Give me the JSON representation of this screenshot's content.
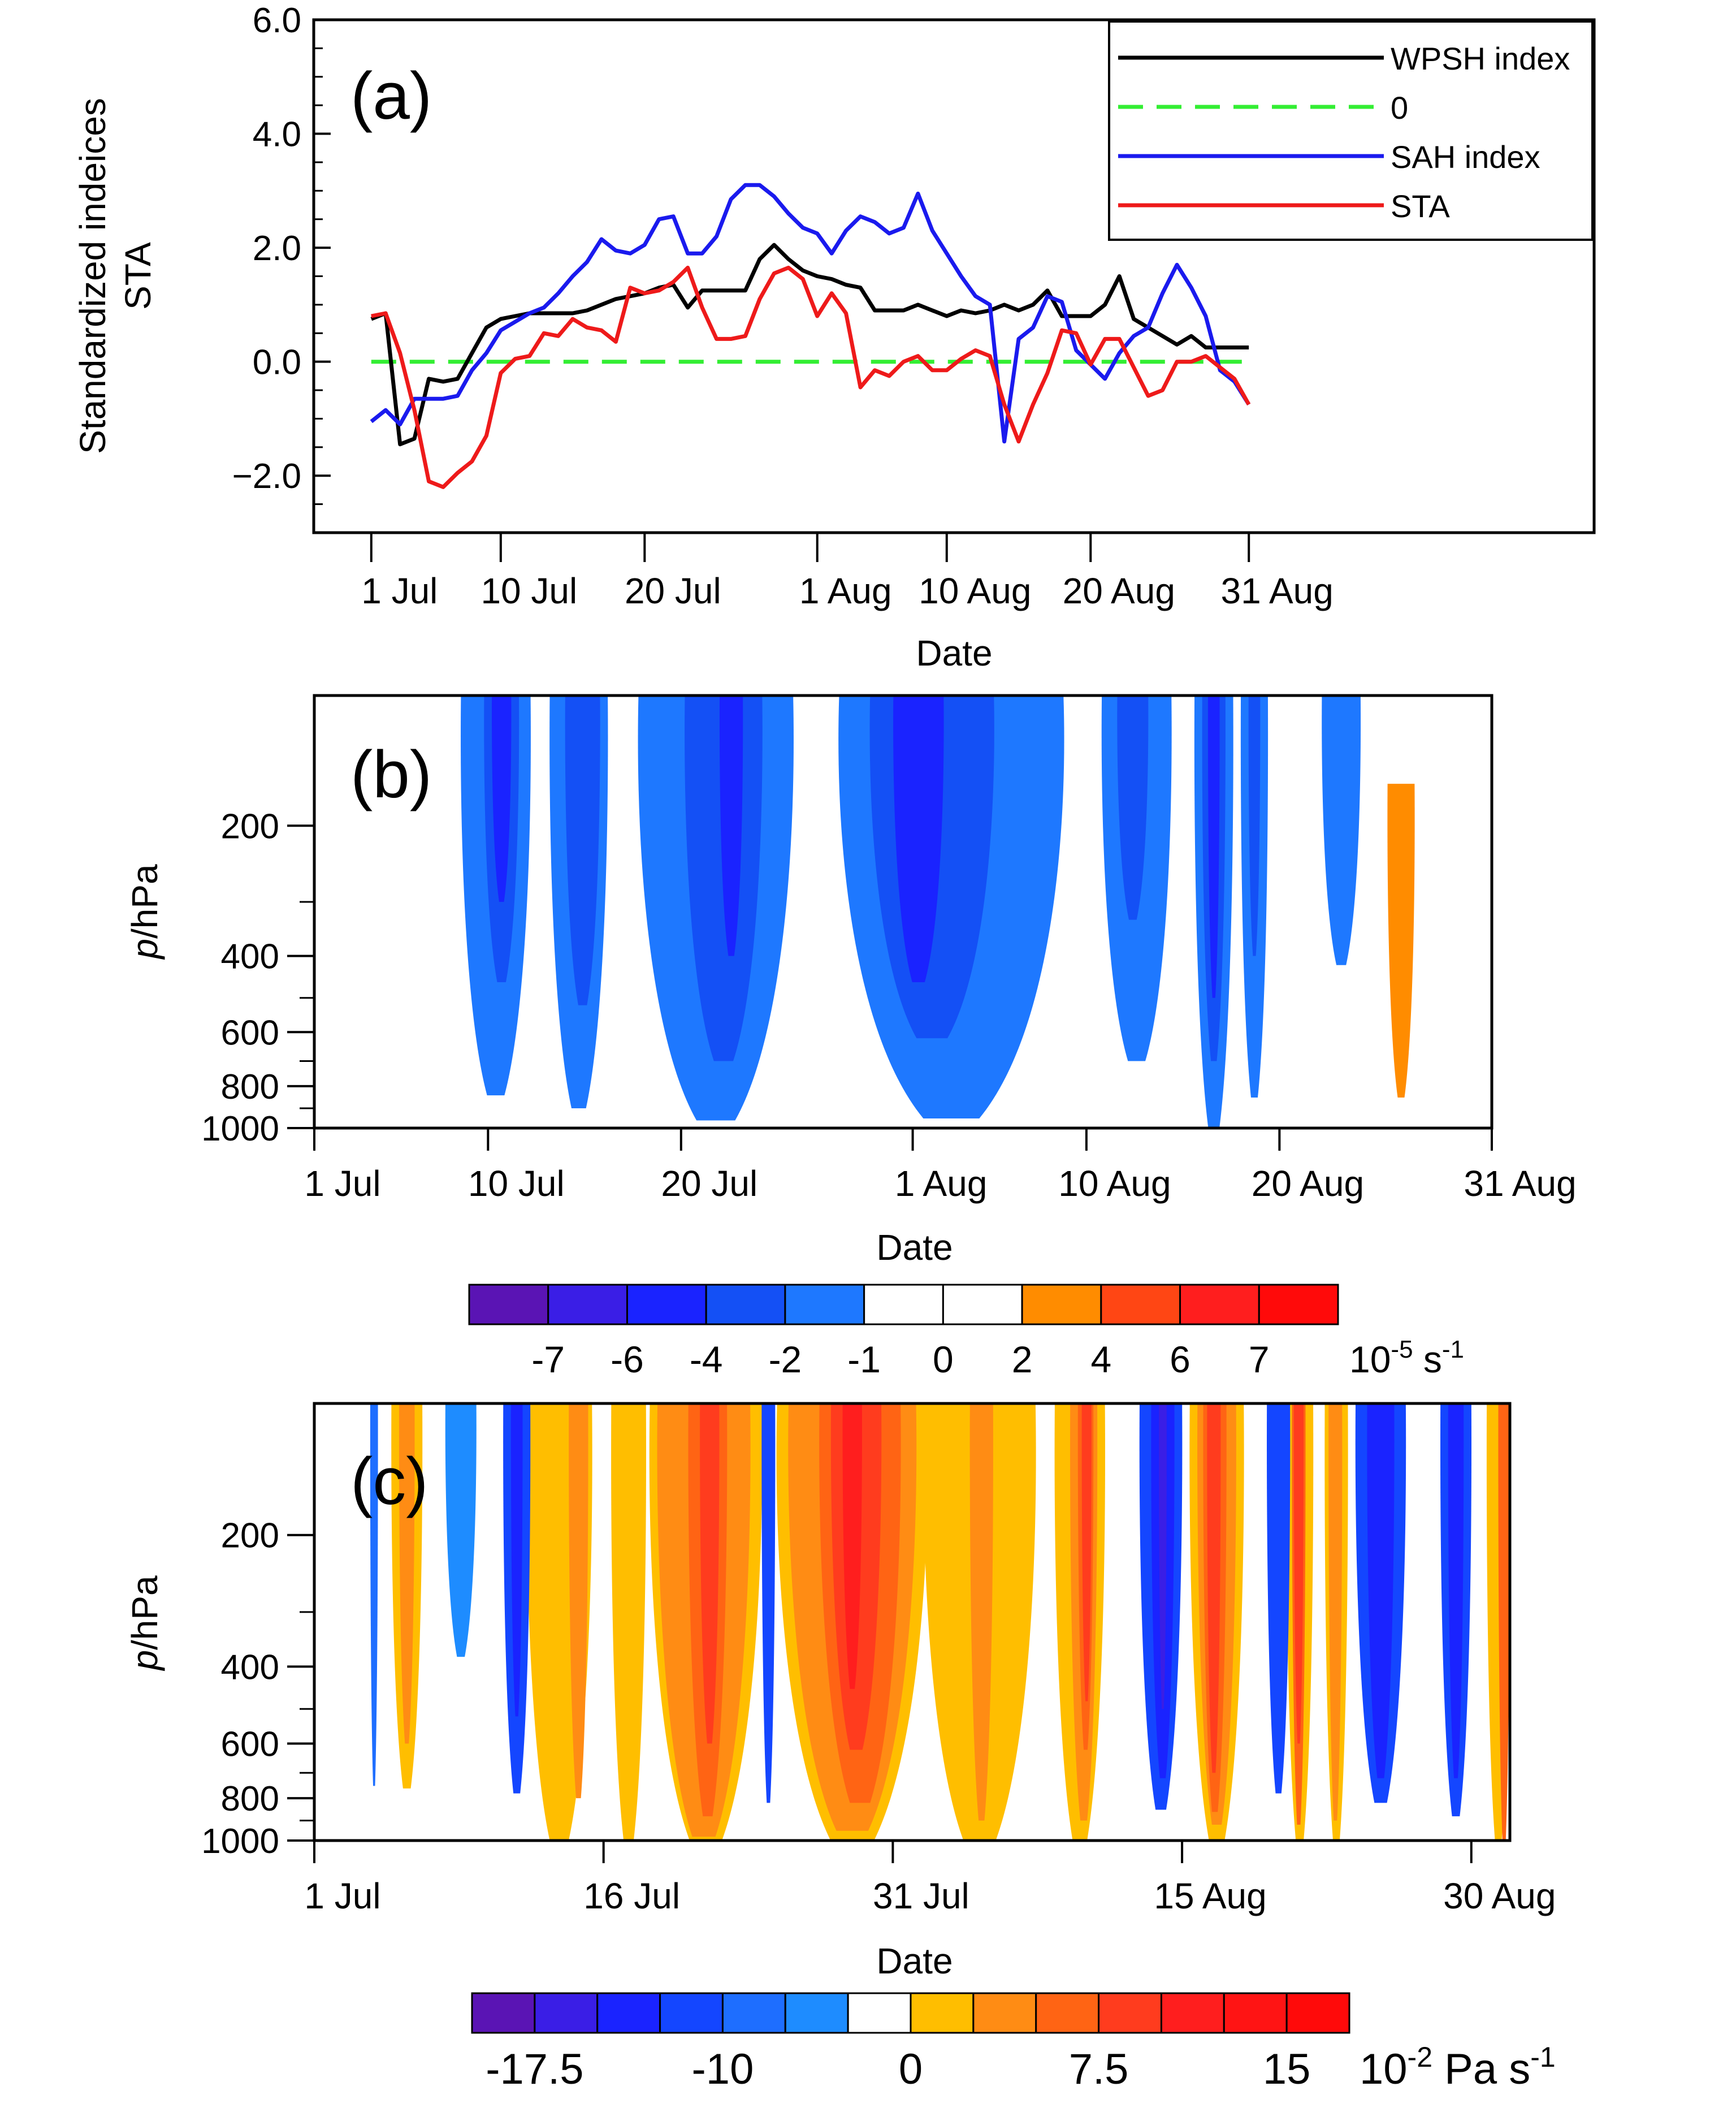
{
  "chart_data": [
    {
      "panel": "(a)",
      "type": "line",
      "ylabel_lines": [
        "Standardized indeices",
        "STA"
      ],
      "xlabel": "Date",
      "ylim": [
        -3.0,
        6.0
      ],
      "yticks": [
        6.0,
        4.0,
        2.0,
        0.0,
        -2.0
      ],
      "ytick_labels": [
        "6.0",
        "4.0",
        "2.0",
        "0.0",
        "−2.0"
      ],
      "xlim": [
        -4,
        85
      ],
      "xticks": [
        0,
        9,
        19,
        31,
        40,
        50,
        61
      ],
      "xtick_labels": [
        "1 Jul",
        "10 Jul",
        "20 Jul",
        "1 Aug",
        "10 Aug",
        "20 Aug",
        "31 Aug"
      ],
      "x_unit": "days since 1 Jul",
      "legend_position": "top-right",
      "series": [
        {
          "name": "WPSH index",
          "color": "#000000",
          "dash": "none",
          "x": [
            0,
            1,
            2,
            3,
            4,
            5,
            6,
            7,
            8,
            9,
            10,
            11,
            12,
            13,
            14,
            15,
            16,
            17,
            18,
            19,
            20,
            21,
            22,
            23,
            24,
            25,
            26,
            27,
            28,
            29,
            30,
            31,
            32,
            33,
            34,
            35,
            36,
            37,
            38,
            39,
            40,
            41,
            42,
            43,
            44,
            45,
            46,
            47,
            48,
            49,
            50,
            51,
            52,
            53,
            54,
            55,
            56,
            57,
            58,
            59,
            60,
            61
          ],
          "values": [
            0.75,
            0.85,
            -1.45,
            -1.35,
            -0.3,
            -0.35,
            -0.3,
            0.15,
            0.6,
            0.75,
            0.8,
            0.85,
            0.85,
            0.85,
            0.85,
            0.9,
            1.0,
            1.1,
            1.15,
            1.2,
            1.3,
            1.35,
            0.95,
            1.25,
            1.25,
            1.25,
            1.25,
            1.8,
            2.05,
            1.8,
            1.6,
            1.5,
            1.45,
            1.35,
            1.3,
            0.9,
            0.9,
            0.9,
            1.0,
            0.9,
            0.8,
            0.9,
            0.85,
            0.9,
            1.0,
            0.9,
            1.0,
            1.25,
            0.8,
            0.8,
            0.8,
            1.0,
            1.5,
            0.75,
            0.6,
            0.45,
            0.3,
            0.45,
            0.25,
            0.25,
            0.25,
            0.25
          ]
        },
        {
          "name": "0",
          "color": "#33ee33",
          "dash": "dashed",
          "x": [
            0,
            61
          ],
          "values": [
            0.0,
            0.0
          ]
        },
        {
          "name": "SAH index",
          "color": "#1a1aee",
          "dash": "none",
          "x": [
            0,
            1,
            2,
            3,
            4,
            5,
            6,
            7,
            8,
            9,
            10,
            11,
            12,
            13,
            14,
            15,
            16,
            17,
            18,
            19,
            20,
            21,
            22,
            23,
            24,
            25,
            26,
            27,
            28,
            29,
            30,
            31,
            32,
            33,
            34,
            35,
            36,
            37,
            38,
            39,
            40,
            41,
            42,
            43,
            44,
            45,
            46,
            47,
            48,
            49,
            50,
            51,
            52,
            53,
            54,
            55,
            56,
            57,
            58,
            59,
            60,
            61
          ],
          "values": [
            -1.05,
            -0.85,
            -1.1,
            -0.65,
            -0.65,
            -0.65,
            -0.6,
            -0.15,
            0.15,
            0.55,
            0.7,
            0.85,
            0.95,
            1.2,
            1.5,
            1.75,
            2.15,
            1.95,
            1.9,
            2.05,
            2.5,
            2.55,
            1.9,
            1.9,
            2.2,
            2.85,
            3.1,
            3.1,
            2.9,
            2.6,
            2.35,
            2.25,
            1.9,
            2.3,
            2.55,
            2.45,
            2.25,
            2.35,
            2.95,
            2.3,
            1.9,
            1.5,
            1.15,
            1.0,
            -1.4,
            0.4,
            0.6,
            1.15,
            1.05,
            0.2,
            -0.05,
            -0.3,
            0.15,
            0.45,
            0.6,
            1.2,
            1.7,
            1.3,
            0.8,
            -0.15,
            -0.35,
            -0.75
          ]
        },
        {
          "name": "STA",
          "color": "#ee1a1a",
          "dash": "none",
          "x": [
            0,
            1,
            2,
            3,
            4,
            5,
            6,
            7,
            8,
            9,
            10,
            11,
            12,
            13,
            14,
            15,
            16,
            17,
            18,
            19,
            20,
            21,
            22,
            23,
            24,
            25,
            26,
            27,
            28,
            29,
            30,
            31,
            32,
            33,
            34,
            35,
            36,
            37,
            38,
            39,
            40,
            41,
            42,
            43,
            44,
            45,
            46,
            47,
            48,
            49,
            50,
            51,
            52,
            53,
            54,
            55,
            56,
            57,
            58,
            59,
            60,
            61
          ],
          "values": [
            0.8,
            0.85,
            0.15,
            -0.85,
            -2.1,
            -2.2,
            -1.95,
            -1.75,
            -1.3,
            -0.2,
            0.05,
            0.1,
            0.5,
            0.45,
            0.75,
            0.6,
            0.55,
            0.35,
            1.3,
            1.2,
            1.25,
            1.4,
            1.65,
            0.95,
            0.4,
            0.4,
            0.45,
            1.1,
            1.55,
            1.65,
            1.45,
            0.8,
            1.2,
            0.85,
            -0.45,
            -0.15,
            -0.25,
            0.0,
            0.1,
            -0.15,
            -0.15,
            0.05,
            0.2,
            0.1,
            -0.75,
            -1.4,
            -0.75,
            -0.2,
            0.55,
            0.5,
            -0.05,
            0.4,
            0.4,
            -0.1,
            -0.6,
            -0.5,
            0.0,
            0.0,
            0.1,
            -0.1,
            -0.3,
            -0.75
          ]
        }
      ]
    },
    {
      "panel": "(b)",
      "type": "heatmap",
      "xlabel": "Date",
      "ylabel": "p/hPa",
      "xlim": [
        0,
        61
      ],
      "xticks": [
        0,
        9,
        19,
        31,
        40,
        50,
        61
      ],
      "xtick_labels": [
        "1 Jul",
        "10 Jul",
        "20 Jul",
        "1 Aug",
        "10 Aug",
        "20 Aug",
        "31 Aug"
      ],
      "yticks": [
        200,
        400,
        600,
        800,
        1000
      ],
      "ytick_labels": [
        "200",
        "400",
        "600",
        "800",
        "1000"
      ],
      "colorbar": {
        "colors": [
          "#5a14b4",
          "#3a1ee6",
          "#1a23ff",
          "#1450f5",
          "#1e78ff",
          "#ffffff",
          "#ffffff",
          "#ff8c00",
          "#ff4614",
          "#ff1e1e",
          "#ff0a0a"
        ],
        "labels": [
          "-7",
          "-6",
          "-4",
          "-2",
          "-1",
          "0",
          "2",
          "4",
          "6",
          "7"
        ],
        "unit": "10",
        "unit_exp": "-5",
        "unit_rest": " s",
        "unit_exp2": "-1"
      },
      "blobs": [
        {
          "t0": 7.6,
          "t1": 11.2,
          "bottom": 840,
          "level": 4
        },
        {
          "t0": 8.8,
          "t1": 10.6,
          "bottom": 460,
          "level": 3
        },
        {
          "t0": 9.2,
          "t1": 10.2,
          "bottom": 300,
          "level": 2
        },
        {
          "t0": 12.2,
          "t1": 15.2,
          "bottom": 900,
          "level": 4
        },
        {
          "t0": 13.0,
          "t1": 14.8,
          "bottom": 520,
          "level": 3
        },
        {
          "t0": 16.8,
          "t1": 24.8,
          "bottom": 960,
          "level": 4
        },
        {
          "t0": 19.2,
          "t1": 23.2,
          "bottom": 700,
          "level": 3
        },
        {
          "t0": 21.0,
          "t1": 22.2,
          "bottom": 400,
          "level": 2
        },
        {
          "t0": 27.2,
          "t1": 38.8,
          "bottom": 950,
          "level": 4
        },
        {
          "t0": 28.8,
          "t1": 35.2,
          "bottom": 620,
          "level": 3
        },
        {
          "t0": 30.0,
          "t1": 32.6,
          "bottom": 460,
          "level": 2
        },
        {
          "t0": 40.8,
          "t1": 44.4,
          "bottom": 700,
          "level": 4
        },
        {
          "t0": 41.6,
          "t1": 43.2,
          "bottom": 330,
          "level": 3
        },
        {
          "t0": 45.6,
          "t1": 47.6,
          "bottom": 1000,
          "level": 4
        },
        {
          "t0": 46.0,
          "t1": 47.2,
          "bottom": 700,
          "level": 3
        },
        {
          "t0": 46.3,
          "t1": 46.9,
          "bottom": 500,
          "level": 2
        },
        {
          "t0": 48.0,
          "t1": 49.4,
          "bottom": 850,
          "level": 4
        },
        {
          "t0": 48.4,
          "t1": 49.0,
          "bottom": 400,
          "level": 3
        },
        {
          "t0": 52.2,
          "t1": 54.2,
          "bottom": 420,
          "level": 4
        },
        {
          "t0": 55.6,
          "t1": 57.0,
          "bottom": 850,
          "level": 7,
          "top": 160
        }
      ]
    },
    {
      "panel": "(c)",
      "type": "heatmap",
      "xlabel": "Date",
      "ylabel": "p/hPa",
      "xlim": [
        0,
        62
      ],
      "xticks": [
        0,
        15,
        30,
        45,
        60
      ],
      "xtick_labels": [
        "1 Jul",
        "16 Jul",
        "31 Jul",
        "15 Aug",
        "30 Aug"
      ],
      "yticks": [
        200,
        400,
        600,
        800,
        1000
      ],
      "ytick_labels": [
        "200",
        "400",
        "600",
        "800",
        "1000"
      ],
      "colorbar": {
        "colors": [
          "#5a14b4",
          "#3a1ee6",
          "#1a23ff",
          "#1446ff",
          "#1e6eff",
          "#1e8cff",
          "#ffffff",
          "#ffbe00",
          "#ff8c14",
          "#ff6414",
          "#ff3c1e",
          "#ff1e1e",
          "#ff1414",
          "#ff0a0a"
        ],
        "labels": [
          "-17.5",
          "-10",
          "0",
          "7.5",
          "15"
        ],
        "unit": "10",
        "unit_exp": "-2",
        "unit_rest": " Pa s",
        "unit_exp2": "-1"
      },
      "blobs": [
        {
          "t0": 4.0,
          "t1": 5.6,
          "bottom": 760,
          "level": 7
        },
        {
          "t0": 4.4,
          "t1": 5.2,
          "bottom": 600,
          "level": 8
        },
        {
          "t0": 11.0,
          "t1": 14.4,
          "bottom": 1000,
          "level": 7,
          "top": 100
        },
        {
          "t0": 13.2,
          "t1": 14.2,
          "bottom": 800,
          "level": 8
        },
        {
          "t0": 15.4,
          "t1": 17.2,
          "bottom": 1000,
          "level": 7,
          "top": 100
        },
        {
          "t0": 17.4,
          "t1": 23.2,
          "bottom": 1000,
          "level": 7,
          "top": 100
        },
        {
          "t0": 17.8,
          "t1": 22.6,
          "bottom": 980,
          "level": 8
        },
        {
          "t0": 19.4,
          "t1": 21.4,
          "bottom": 880,
          "level": 9
        },
        {
          "t0": 20.0,
          "t1": 21.0,
          "bottom": 600,
          "level": 10
        },
        {
          "t0": 24.0,
          "t1": 31.8,
          "bottom": 1000,
          "level": 7,
          "top": 100
        },
        {
          "t0": 24.6,
          "t1": 31.2,
          "bottom": 950,
          "level": 8
        },
        {
          "t0": 26.2,
          "t1": 30.4,
          "bottom": 820,
          "level": 9
        },
        {
          "t0": 26.8,
          "t1": 29.4,
          "bottom": 620,
          "level": 10
        },
        {
          "t0": 27.4,
          "t1": 28.4,
          "bottom": 450,
          "level": 11
        },
        {
          "t0": 31.6,
          "t1": 37.4,
          "bottom": 1000,
          "level": 7,
          "top": 100
        },
        {
          "t0": 34.0,
          "t1": 35.2,
          "bottom": 900,
          "level": 8
        },
        {
          "t0": 38.4,
          "t1": 41.0,
          "bottom": 1000,
          "level": 7,
          "top": 100
        },
        {
          "t0": 39.2,
          "t1": 40.6,
          "bottom": 900,
          "level": 8
        },
        {
          "t0": 39.6,
          "t1": 40.4,
          "bottom": 620,
          "level": 9
        },
        {
          "t0": 39.8,
          "t1": 40.3,
          "bottom": 480,
          "level": 10
        },
        {
          "t0": 45.4,
          "t1": 48.2,
          "bottom": 1000,
          "level": 7,
          "top": 100
        },
        {
          "t0": 45.8,
          "t1": 47.8,
          "bottom": 920,
          "level": 8
        },
        {
          "t0": 46.1,
          "t1": 47.3,
          "bottom": 860,
          "level": 9
        },
        {
          "t0": 46.3,
          "t1": 47.0,
          "bottom": 700,
          "level": 10
        },
        {
          "t0": 50.4,
          "t1": 51.8,
          "bottom": 1000,
          "level": 7,
          "top": 100
        },
        {
          "t0": 50.7,
          "t1": 51.4,
          "bottom": 920,
          "level": 9
        },
        {
          "t0": 50.8,
          "t1": 51.3,
          "bottom": 600,
          "level": 10
        },
        {
          "t0": 52.4,
          "t1": 53.6,
          "bottom": 1000,
          "level": 7,
          "top": 100
        },
        {
          "t0": 52.6,
          "t1": 53.3,
          "bottom": 900,
          "level": 8
        },
        {
          "t0": 60.8,
          "t1": 62.0,
          "bottom": 1000,
          "level": 7,
          "top": 100
        },
        {
          "t0": 61.4,
          "t1": 62.0,
          "bottom": 1000,
          "level": 9
        },
        {
          "t0": 2.9,
          "t1": 3.3,
          "bottom": 750,
          "level": 4
        },
        {
          "t0": 6.8,
          "t1": 8.4,
          "bottom": 380,
          "level": 5
        },
        {
          "t0": 9.8,
          "t1": 11.2,
          "bottom": 780,
          "level": 3
        },
        {
          "t0": 10.2,
          "t1": 10.8,
          "bottom": 520,
          "level": 2
        },
        {
          "t0": 23.2,
          "t1": 23.9,
          "bottom": 820,
          "level": 3
        },
        {
          "t0": 42.8,
          "t1": 45.0,
          "bottom": 850,
          "level": 3
        },
        {
          "t0": 43.4,
          "t1": 44.6,
          "bottom": 720,
          "level": 2
        },
        {
          "t0": 43.8,
          "t1": 44.2,
          "bottom": 500,
          "level": 1
        },
        {
          "t0": 49.4,
          "t1": 50.6,
          "bottom": 780,
          "level": 3
        },
        {
          "t0": 54.0,
          "t1": 56.6,
          "bottom": 820,
          "level": 3
        },
        {
          "t0": 54.6,
          "t1": 56.0,
          "bottom": 720,
          "level": 2
        },
        {
          "t0": 58.4,
          "t1": 60.0,
          "bottom": 880,
          "level": 3
        },
        {
          "t0": 58.8,
          "t1": 59.6,
          "bottom": 720,
          "level": 2
        }
      ]
    }
  ]
}
